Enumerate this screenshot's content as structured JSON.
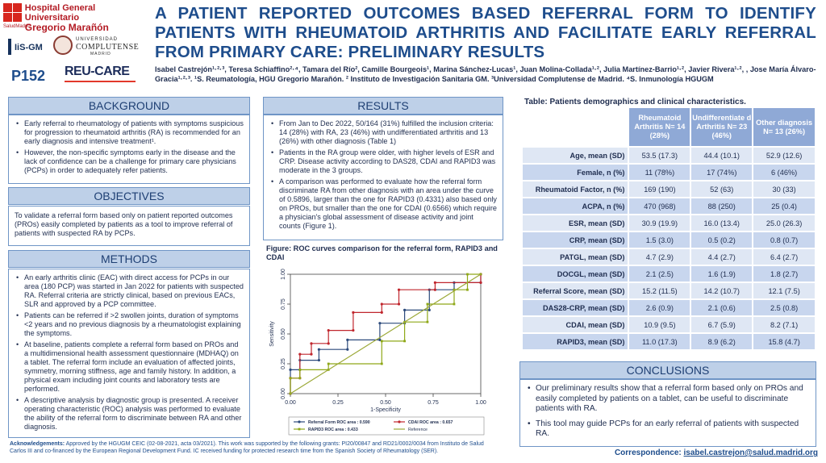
{
  "header": {
    "hospital_line1": "Hospital General Universitario",
    "hospital_line2": "Gregorio Marañón",
    "hospital_sub": "SaludMadrid",
    "igm_logo": "IiS-GM",
    "ucm_line1": "UNIVERSIDAD",
    "ucm_line2": "COMPLUTENSE",
    "ucm_line3": "MADRID",
    "poster_number": "P152",
    "recare_logo": "REU-CARE",
    "title": "A PATIENT REPORTED OUTCOMES BASED REFERRAL FORM TO IDENTIFY PATIENTS WITH RHEUMATOID ARTHRITIS AND FACILITATE EARLY REFERRAL FROM PRIMARY CARE: PRELIMINARY RESULTS",
    "authors": "Isabel Castrejón¹·²·³, Teresa Schiaffino²·⁴, Tamara del Río², Camille Bourgeois¹, Marina Sánchez-Lucas¹, Juan Molina-Collada¹·², Julia Martínez-Barrio¹·², Javier Rivera¹·², , Jose María Álvaro-Gracia¹·²·³. ¹S. Reumatología, HGU Gregorio Marañón. ² Instituto de Investigación Sanitaria GM. ³Universidad Complutense de Madrid. ⁴S. Inmunología HGUGM"
  },
  "background": {
    "heading": "BACKGROUND",
    "items": [
      "Early referral to rheumatology of patients with symptoms suspicious for progression to rheumatoid arthritis (RA) is recommended for an early diagnosis and intensive treatment¹.",
      "However, the non-specific symptoms early in the disease and the lack of confidence can be a challenge for primary care physicians (PCPs) in order to adequately refer patients."
    ]
  },
  "objectives": {
    "heading": "OBJECTIVES",
    "text": "To validate a referral form based only on patient reported outcomes (PROs) easily completed by patients as a tool to improve referral of patients with suspected RA by PCPs."
  },
  "methods": {
    "heading": "METHODS",
    "items": [
      "An early arthritis clinic (EAC) with direct access for PCPs in our area (180 PCP) was started in Jan 2022 for patients with suspected RA. Referral criteria are strictly clinical, based on previous EACs, SLR and approved by a PCP committee.",
      "Patients can be referred if >2 swollen joints, duration of symptoms <2 years and no previous diagnosis by a rheumatologist explaining the symptoms.",
      "At baseline, patients complete a referral form based on PROs and a multidimensional health assessment questionnaire (MDHAQ) on a tablet. The referral form include an evaluation of affected joints, symmetry, morning stiffness, age and family history. In addition, a physical exam including joint counts and laboratory tests are performed.",
      "A descriptive analysis by diagnostic group is presented. A receiver operating characteristic (ROC) analysis was performed to evaluate the ability of the referral form to discriminate between RA and other diagnosis."
    ]
  },
  "results": {
    "heading": "RESULTS",
    "items": [
      "From Jan to Dec 2022, 50/164 (31%) fulfilled the inclusion criteria: 14 (28%) with RA, 23 (46%) with undifferentiated arthritis and 13 (26%) with other diagnosis (Table 1)",
      "Patients in the RA group were older, with higher levels of ESR and CRP. Disease activity according to DAS28, CDAI and RAPID3 was moderate in the 3 groups.",
      "A comparison was performed to evaluate how the referral form discriminate RA from other diagnosis with an area under the curve of 0.5896, larger than the one for RAPID3 (0.4331) also based only on PROs, but smaller than the one for CDAI (0.6566) which require a physician's global assessment of disease activity and joint counts (Figure 1)."
    ]
  },
  "figure": {
    "title": "Figure: ROC curves comparison for the referral form, RAPID3 and CDAI"
  },
  "chart_data": {
    "type": "line",
    "title": "",
    "xlabel": "1-Specificity",
    "ylabel": "Sensitivity",
    "xlim": [
      0,
      1
    ],
    "ylim": [
      0,
      1
    ],
    "xticks": [
      "0.00",
      "0.25",
      "0.50",
      "0.75",
      "1.00"
    ],
    "yticks": [
      "0.00",
      "0.25",
      "0.50",
      "0.75",
      "1.00"
    ],
    "legend_position": "bottom",
    "series": [
      {
        "name": "Referral Form ROC area : 0.590",
        "color": "#2c4a7c",
        "points": [
          [
            0,
            0
          ],
          [
            0,
            0.2
          ],
          [
            0.05,
            0.2
          ],
          [
            0.05,
            0.28
          ],
          [
            0.15,
            0.28
          ],
          [
            0.15,
            0.37
          ],
          [
            0.3,
            0.37
          ],
          [
            0.3,
            0.45
          ],
          [
            0.47,
            0.45
          ],
          [
            0.47,
            0.59
          ],
          [
            0.6,
            0.59
          ],
          [
            0.6,
            0.7
          ],
          [
            0.73,
            0.7
          ],
          [
            0.73,
            0.87
          ],
          [
            0.86,
            0.87
          ],
          [
            0.86,
            0.93
          ],
          [
            1,
            0.93
          ],
          [
            1,
            1
          ]
        ]
      },
      {
        "name": "CDAI ROC area : 0.657",
        "color": "#c0262d",
        "points": [
          [
            0,
            0
          ],
          [
            0,
            0.13
          ],
          [
            0.05,
            0.13
          ],
          [
            0.05,
            0.33
          ],
          [
            0.11,
            0.33
          ],
          [
            0.11,
            0.42
          ],
          [
            0.2,
            0.42
          ],
          [
            0.2,
            0.53
          ],
          [
            0.33,
            0.53
          ],
          [
            0.33,
            0.68
          ],
          [
            0.48,
            0.68
          ],
          [
            0.48,
            0.75
          ],
          [
            0.57,
            0.75
          ],
          [
            0.57,
            0.87
          ],
          [
            0.76,
            0.87
          ],
          [
            0.76,
            0.93
          ],
          [
            1,
            0.93
          ],
          [
            1,
            1
          ]
        ]
      },
      {
        "name": "RAPID3 ROC area : 0.433",
        "color": "#8fa818",
        "points": [
          [
            0,
            0
          ],
          [
            0,
            0.13
          ],
          [
            0.05,
            0.13
          ],
          [
            0.05,
            0.2
          ],
          [
            0.2,
            0.2
          ],
          [
            0.2,
            0.25
          ],
          [
            0.48,
            0.25
          ],
          [
            0.48,
            0.44
          ],
          [
            0.6,
            0.44
          ],
          [
            0.6,
            0.6
          ],
          [
            0.72,
            0.6
          ],
          [
            0.72,
            0.75
          ],
          [
            0.86,
            0.75
          ],
          [
            0.86,
            0.87
          ],
          [
            0.93,
            0.87
          ],
          [
            0.93,
            1
          ],
          [
            1,
            1
          ]
        ]
      },
      {
        "name": "Reference",
        "color": "#9ba836",
        "points": [
          [
            0,
            0
          ],
          [
            1,
            1
          ]
        ]
      }
    ]
  },
  "table": {
    "title": "Table: Patients demographics and clinical characteristics.",
    "columns": [
      "Rheumatoid Arthritis N= 14 (28%)",
      "Undifferentiate d Arthritis N= 23 (46%)",
      "Other diagnosis N= 13 (26%)"
    ],
    "rows": [
      {
        "label": "Age, mean (SD)",
        "values": [
          "53.5 (17.3)",
          "44.4 (10.1)",
          "52.9 (12.6)"
        ]
      },
      {
        "label": "Female, n (%)",
        "values": [
          "11 (78%)",
          "17 (74%)",
          "6 (46%)"
        ]
      },
      {
        "label": "Rheumatoid Factor, n (%)",
        "values": [
          "169 (190)",
          "52 (63)",
          "30 (33)"
        ]
      },
      {
        "label": "ACPA, n (%)",
        "values": [
          "470 (968)",
          "88 (250)",
          "25 (0.4)"
        ]
      },
      {
        "label": "ESR, mean (SD)",
        "values": [
          "30.9 (19.9)",
          "16.0 (13.4)",
          "25.0 (26.3)"
        ]
      },
      {
        "label": "CRP, mean (SD)",
        "values": [
          "1.5 (3.0)",
          "0.5 (0.2)",
          "0.8 (0.7)"
        ]
      },
      {
        "label": "PATGL, mean (SD)",
        "values": [
          "4.7 (2.9)",
          "4.4 (2.7)",
          "6.4 (2.7)"
        ]
      },
      {
        "label": "DOCGL, mean (SD)",
        "values": [
          "2.1 (2.5)",
          "1.6 (1.9)",
          "1.8 (2.7)"
        ]
      },
      {
        "label": "Referral Score, mean (SD)",
        "values": [
          "15.2 (11.5)",
          "14.2 (10.7)",
          "12.1 (7.5)"
        ]
      },
      {
        "label": "DAS28-CRP, mean (SD)",
        "values": [
          "2.6 (0.9)",
          "2.1 (0.6)",
          "2.5 (0.8)"
        ]
      },
      {
        "label": "CDAI, mean (SD)",
        "values": [
          "10.9 (9.5)",
          "6.7 (5.9)",
          "8.2 (7.1)"
        ]
      },
      {
        "label": "RAPID3, mean (SD)",
        "values": [
          "11.0 (17.3)",
          "8.9 (6.2)",
          "15.8 (4.7)"
        ]
      }
    ]
  },
  "conclusions": {
    "heading": "CONCLUSIONS",
    "items": [
      "Our preliminary results show that a referral form based only on PROs and easily completed by patients on a tablet, can be useful to discriminate patients with RA.",
      "This tool may guide PCPs for an early referral of patients with suspected RA."
    ]
  },
  "footer": {
    "ack_label": "Acknowledgements:",
    "ack_text": "Approved by the HGUGM CEIC (02-08-2021, acta 03/2021). This work was supported by the following grants: PI20/00847 and RD21/0002/0034 from Instituto de Salud Carlos III and co-financed by the European Regional Development Fund. IC received funding for protected research time from the Spanish Society of Rheumatology (SER).",
    "corr_label": "Correspondence:",
    "corr_email": "isabel.castrejon@salud.madrid.org"
  }
}
